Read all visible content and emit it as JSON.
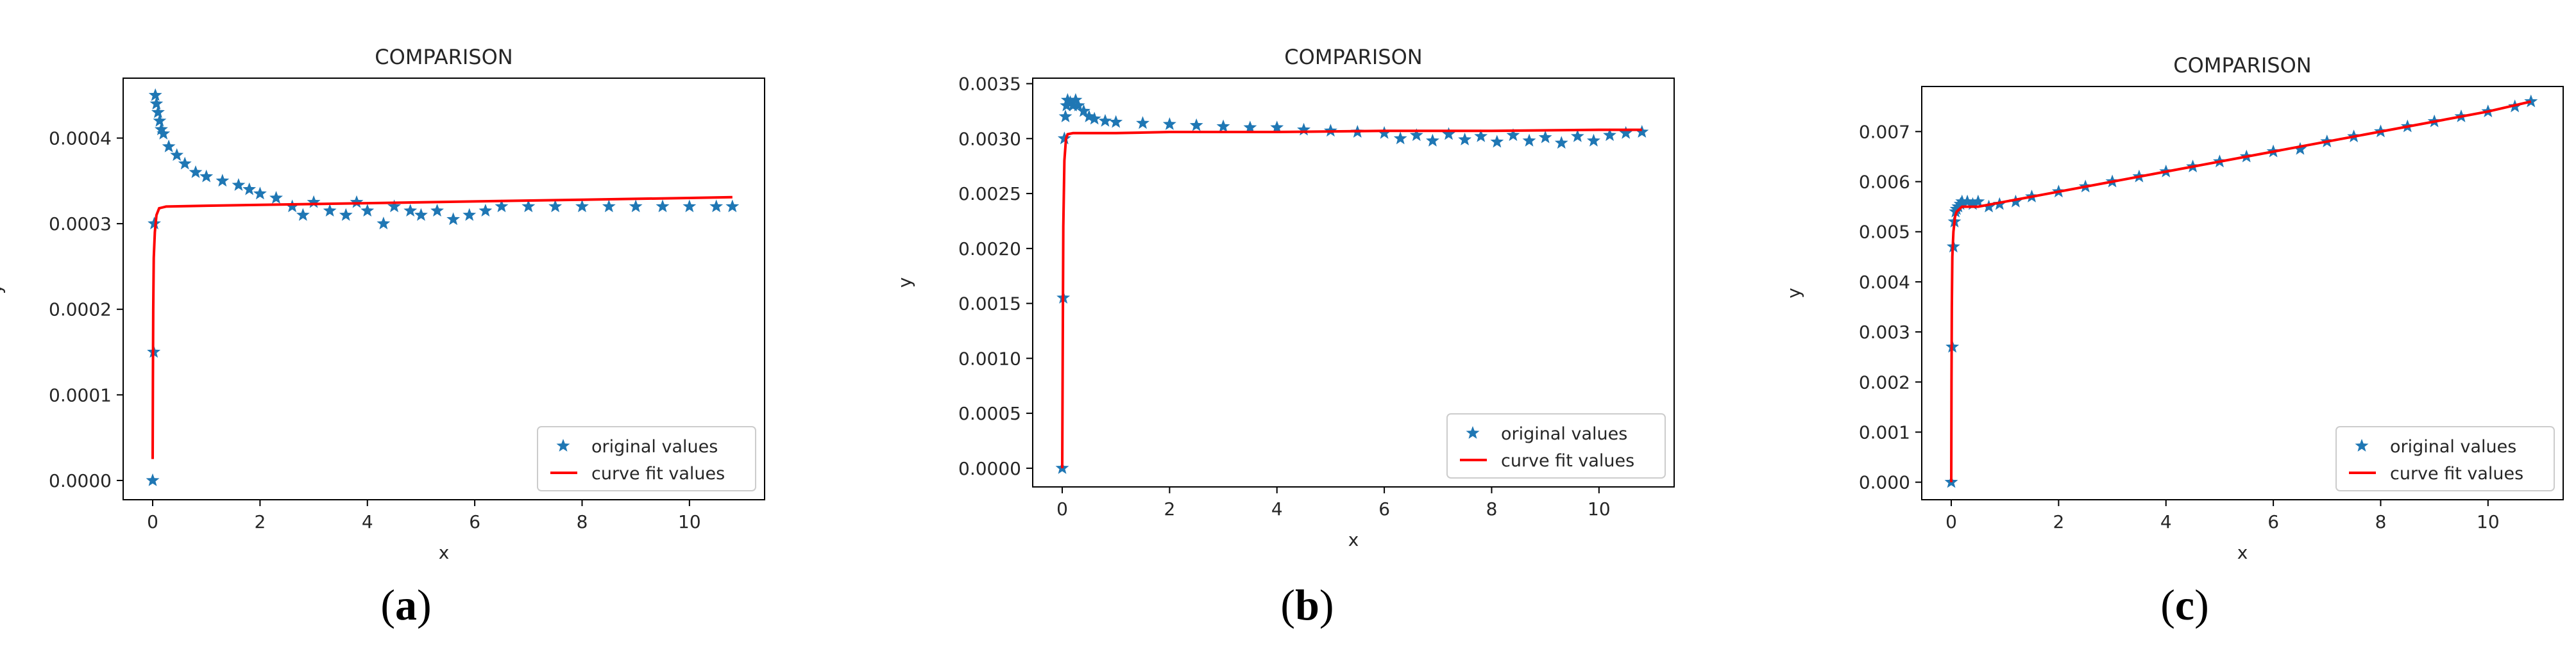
{
  "figure": {
    "panel_labels": [
      {
        "open": "(",
        "letter": "a",
        "close": ")"
      },
      {
        "open": "(",
        "letter": "b",
        "close": ")"
      },
      {
        "open": "(",
        "letter": "c",
        "close": ")"
      }
    ]
  },
  "colors": {
    "original": "#1f77b4",
    "fit": "#ff0000",
    "axis": "#000000",
    "text": "#262626"
  },
  "chart_data": [
    {
      "type": "scatter",
      "title": "COMPARISON",
      "xlabel": "x",
      "ylabel": "y",
      "xlim": [
        -0.55,
        11.4
      ],
      "ylim": [
        -2.25e-05,
        0.00047
      ],
      "xticks": [
        0,
        2,
        4,
        6,
        8,
        10
      ],
      "yticks": [
        0.0,
        0.0001,
        0.0002,
        0.0003,
        0.0004
      ],
      "ytick_labels": [
        "0.0000",
        "0.0001",
        "0.0002",
        "0.0003",
        "0.0004"
      ],
      "legend": {
        "position": "lower-right",
        "entries": [
          "original values",
          "curve fit values"
        ]
      },
      "series": [
        {
          "name": "original values",
          "marker": "star",
          "kind": "scatter",
          "x": [
            0,
            0.02,
            0.03,
            0.05,
            0.07,
            0.1,
            0.13,
            0.16,
            0.2,
            0.3,
            0.45,
            0.6,
            0.8,
            1.0,
            1.3,
            1.6,
            1.8,
            2.0,
            2.3,
            2.6,
            2.8,
            3.0,
            3.3,
            3.6,
            3.8,
            4.0,
            4.3,
            4.5,
            4.8,
            5.0,
            5.3,
            5.6,
            5.9,
            6.2,
            6.5,
            7.0,
            7.5,
            8.0,
            8.5,
            9.0,
            9.5,
            10.0,
            10.5,
            10.8
          ],
          "y": [
            0.0,
            0.00015,
            0.0003,
            0.00045,
            0.00044,
            0.00043,
            0.00042,
            0.00041,
            0.000405,
            0.00039,
            0.00038,
            0.00037,
            0.00036,
            0.000355,
            0.00035,
            0.000345,
            0.00034,
            0.000335,
            0.00033,
            0.00032,
            0.00031,
            0.000325,
            0.000315,
            0.00031,
            0.000325,
            0.000315,
            0.0003,
            0.00032,
            0.000315,
            0.00031,
            0.000315,
            0.000305,
            0.00031,
            0.000315,
            0.00032,
            0.00032,
            0.00032,
            0.00032,
            0.00032,
            0.00032,
            0.00032,
            0.00032,
            0.00032,
            0.00032
          ]
        },
        {
          "name": "curve fit values",
          "kind": "line",
          "x": [
            0,
            0.005,
            0.01,
            0.02,
            0.04,
            0.07,
            0.12,
            0.25,
            1,
            2,
            4,
            6,
            8,
            10,
            10.8
          ],
          "y": [
            2.5e-05,
            0.00012,
            0.0002,
            0.00026,
            0.00029,
            0.00031,
            0.000318,
            0.00032,
            0.000321,
            0.000322,
            0.000324,
            0.000326,
            0.000328,
            0.00033,
            0.000331
          ]
        }
      ]
    },
    {
      "type": "scatter",
      "title": "COMPARISON",
      "xlabel": "x",
      "ylabel": "y",
      "xlim": [
        -0.55,
        11.4
      ],
      "ylim": [
        -0.00017,
        0.00355
      ],
      "xticks": [
        0,
        2,
        4,
        6,
        8,
        10
      ],
      "yticks": [
        0.0,
        0.0005,
        0.001,
        0.0015,
        0.002,
        0.0025,
        0.003,
        0.0035
      ],
      "ytick_labels": [
        "0.0000",
        "0.0005",
        "0.0010",
        "0.0015",
        "0.0020",
        "0.0025",
        "0.0030",
        "0.0035"
      ],
      "legend": {
        "position": "lower-right",
        "entries": [
          "original values",
          "curve fit values"
        ]
      },
      "series": [
        {
          "name": "original values",
          "marker": "star",
          "kind": "scatter",
          "x": [
            0,
            0.02,
            0.04,
            0.06,
            0.08,
            0.1,
            0.15,
            0.2,
            0.25,
            0.3,
            0.4,
            0.5,
            0.6,
            0.8,
            1.0,
            1.5,
            2.0,
            2.5,
            3.0,
            3.5,
            4.0,
            4.5,
            5.0,
            5.5,
            6.0,
            6.3,
            6.6,
            6.9,
            7.2,
            7.5,
            7.8,
            8.1,
            8.4,
            8.7,
            9.0,
            9.3,
            9.6,
            9.9,
            10.2,
            10.5,
            10.8
          ],
          "y": [
            0.0,
            0.00155,
            0.003,
            0.0032,
            0.0033,
            0.00335,
            0.00333,
            0.0033,
            0.00335,
            0.0033,
            0.00325,
            0.0032,
            0.00318,
            0.00316,
            0.00315,
            0.00314,
            0.00313,
            0.00312,
            0.00311,
            0.0031,
            0.0031,
            0.00308,
            0.00307,
            0.00306,
            0.00305,
            0.003,
            0.00303,
            0.00298,
            0.00304,
            0.00299,
            0.00302,
            0.00297,
            0.00303,
            0.00298,
            0.00301,
            0.00296,
            0.00302,
            0.00298,
            0.00303,
            0.00305,
            0.00306
          ]
        },
        {
          "name": "curve fit values",
          "kind": "line",
          "x": [
            0,
            0.01,
            0.02,
            0.04,
            0.07,
            0.1,
            0.2,
            1,
            2,
            4,
            6,
            8,
            10,
            10.8
          ],
          "y": [
            0.0,
            0.0012,
            0.0022,
            0.0028,
            0.003,
            0.00304,
            0.00305,
            0.00305,
            0.00306,
            0.00306,
            0.00307,
            0.00307,
            0.00308,
            0.00308
          ]
        }
      ]
    },
    {
      "type": "scatter",
      "title": "COMPARISON",
      "xlabel": "x",
      "ylabel": "y",
      "xlim": [
        -0.55,
        11.4
      ],
      "ylim": [
        -0.00035,
        0.0079
      ],
      "xticks": [
        0,
        2,
        4,
        6,
        8,
        10
      ],
      "yticks": [
        0.0,
        0.001,
        0.002,
        0.003,
        0.004,
        0.005,
        0.006,
        0.007
      ],
      "ytick_labels": [
        "0.000",
        "0.001",
        "0.002",
        "0.003",
        "0.004",
        "0.005",
        "0.006",
        "0.007"
      ],
      "legend": {
        "position": "lower-right",
        "entries": [
          "original values",
          "curve fit values"
        ]
      },
      "series": [
        {
          "name": "original values",
          "marker": "star",
          "kind": "scatter",
          "x": [
            0,
            0.02,
            0.04,
            0.06,
            0.08,
            0.1,
            0.13,
            0.17,
            0.2,
            0.3,
            0.4,
            0.5,
            0.7,
            0.9,
            1.2,
            1.5,
            2.0,
            2.5,
            3.0,
            3.5,
            4.0,
            4.5,
            5.0,
            5.5,
            6.0,
            6.5,
            7.0,
            7.5,
            8.0,
            8.5,
            9.0,
            9.5,
            10.0,
            10.5,
            10.8
          ],
          "y": [
            0.0,
            0.0027,
            0.0047,
            0.0052,
            0.0054,
            0.00545,
            0.0055,
            0.00555,
            0.0056,
            0.0056,
            0.00555,
            0.0056,
            0.0055,
            0.00555,
            0.0056,
            0.0057,
            0.0058,
            0.0059,
            0.006,
            0.0061,
            0.0062,
            0.0063,
            0.0064,
            0.0065,
            0.0066,
            0.00665,
            0.0068,
            0.0069,
            0.007,
            0.0071,
            0.0072,
            0.0073,
            0.0074,
            0.0075,
            0.0076
          ]
        },
        {
          "name": "curve fit values",
          "kind": "line",
          "x": [
            0,
            0.005,
            0.01,
            0.02,
            0.04,
            0.07,
            0.1,
            0.2,
            0.5,
            1,
            2,
            4,
            6,
            8,
            10,
            10.8
          ],
          "y": [
            0.0,
            0.002,
            0.0035,
            0.0045,
            0.005,
            0.0053,
            0.0054,
            0.0055,
            0.0055,
            0.0056,
            0.0058,
            0.0062,
            0.0066,
            0.007,
            0.0074,
            0.0076
          ]
        }
      ]
    }
  ]
}
